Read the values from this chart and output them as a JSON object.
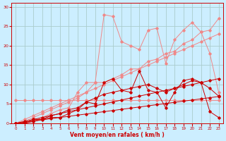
{
  "bg_color": "#cceeff",
  "grid_color": "#aacccc",
  "line_color_light": "#f08888",
  "line_color_dark": "#cc0000",
  "xlabel": "Vent moyen/en rafales ( km/h )",
  "xlabel_color": "#cc0000",
  "tick_color": "#cc0000",
  "xlim": [
    -0.5,
    23.5
  ],
  "ylim": [
    0,
    31
  ],
  "xticks": [
    0,
    1,
    2,
    3,
    4,
    5,
    6,
    7,
    8,
    9,
    10,
    11,
    12,
    13,
    14,
    15,
    16,
    17,
    18,
    19,
    20,
    21,
    22,
    23
  ],
  "yticks": [
    0,
    5,
    10,
    15,
    20,
    25,
    30
  ],
  "x": [
    0,
    1,
    2,
    3,
    4,
    5,
    6,
    7,
    8,
    9,
    10,
    11,
    12,
    13,
    14,
    15,
    16,
    17,
    18,
    19,
    20,
    21,
    22,
    23
  ],
  "line_trend1_light": [
    0,
    0.5,
    1.0,
    1.5,
    2.0,
    2.5,
    3.0,
    3.5,
    4.0,
    4.5,
    5.0,
    5.5,
    6.0,
    6.5,
    7.0,
    7.5,
    8.0,
    8.5,
    9.0,
    9.5,
    10.0,
    10.5,
    11.0,
    11.5
  ],
  "line_trend2_light": [
    0,
    1.0,
    2.0,
    3.0,
    4.0,
    5.0,
    6.0,
    7.0,
    8.0,
    9.0,
    10.0,
    11.0,
    12.0,
    13.0,
    14.0,
    15.0,
    16.0,
    17.0,
    18.0,
    19.0,
    20.0,
    21.0,
    22.0,
    23.0
  ],
  "line_flat_light": [
    6,
    6,
    6,
    6,
    6,
    6,
    6,
    6,
    6,
    6,
    6,
    6,
    6,
    6,
    6,
    6,
    6,
    6,
    6,
    6,
    6,
    6,
    6,
    6
  ],
  "line_zigzag_light": [
    0,
    0,
    0.5,
    1.5,
    2.5,
    3.5,
    4.0,
    8.0,
    10.5,
    10.5,
    28.0,
    27.5,
    21.0,
    20.0,
    19.0,
    24.0,
    24.5,
    15.5,
    21.5,
    24.0,
    26.0,
    23.5,
    18.0,
    8.0
  ],
  "line_trend3_light": [
    0,
    0.5,
    1.5,
    2.5,
    3.5,
    4.5,
    5.5,
    6.5,
    8.0,
    10.5,
    10.5,
    11.5,
    12.5,
    14.0,
    14.0,
    16.0,
    16.5,
    18.0,
    18.5,
    20.5,
    21.5,
    23.5,
    24.0,
    27.0
  ],
  "line_zigzag_dark": [
    0,
    0,
    1.0,
    1.0,
    1.5,
    1.5,
    2.5,
    3.5,
    5.5,
    5.0,
    10.5,
    11.5,
    8.5,
    8.0,
    13.5,
    8.5,
    8.0,
    4.0,
    8.0,
    11.0,
    11.5,
    10.5,
    3.0,
    1.5
  ],
  "line_trend4_dark": [
    0,
    0,
    0.5,
    1.0,
    2.0,
    2.5,
    3.5,
    4.0,
    5.5,
    6.5,
    7.5,
    8.0,
    8.5,
    9.0,
    9.5,
    10.0,
    9.0,
    8.0,
    9.0,
    10.0,
    11.0,
    10.5,
    9.0,
    7.0
  ],
  "line_trend5_dark": [
    0,
    0.3,
    0.6,
    0.9,
    1.2,
    1.5,
    1.8,
    2.1,
    2.4,
    2.7,
    3.0,
    3.3,
    3.6,
    3.9,
    4.2,
    4.5,
    4.8,
    5.1,
    5.4,
    5.7,
    6.0,
    6.3,
    6.6,
    6.9
  ]
}
